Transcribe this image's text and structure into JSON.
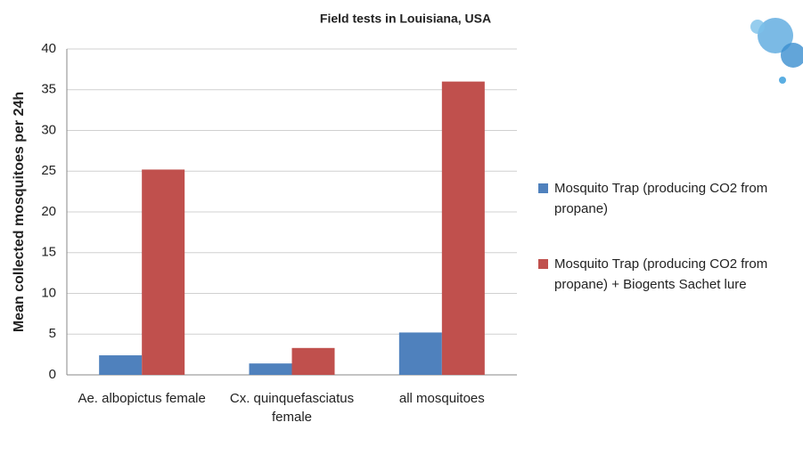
{
  "chart_data": {
    "type": "bar",
    "title": "Field tests in Louisiana, USA",
    "y_label": "Mean collected mosquitoes per 24h",
    "categories": [
      "Ae. albopictus female",
      "Cx. quinquefasciatus female",
      "all mosquitoes"
    ],
    "series": [
      {
        "name": "Mosquito Trap (producing CO2 from propane)",
        "color": "#4f81bd",
        "values": [
          2.4,
          1.4,
          5.2
        ]
      },
      {
        "name": "Mosquito Trap (producing CO2 from propane) + Biogents Sachet lure",
        "color": "#c0504d",
        "values": [
          25.2,
          3.3,
          36
        ]
      }
    ],
    "ylim": [
      0,
      40
    ],
    "yticks": [
      0,
      5,
      10,
      15,
      20,
      25,
      30,
      35,
      40
    ],
    "grid": true
  }
}
